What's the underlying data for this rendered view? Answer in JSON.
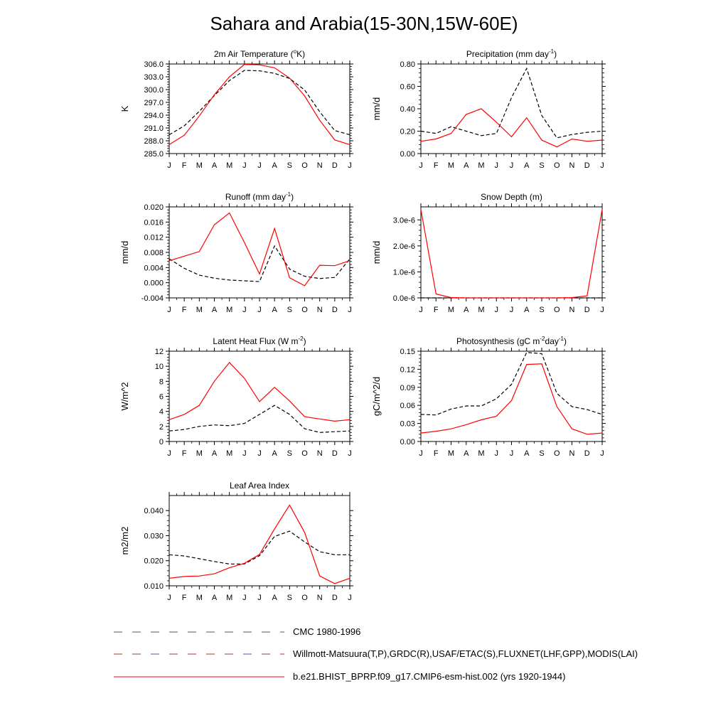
{
  "title": "Sahara and Arabia(15-30N,15W-60E)",
  "months": [
    "J",
    "F",
    "M",
    "A",
    "M",
    "J",
    "J",
    "A",
    "S",
    "O",
    "N",
    "D",
    "J"
  ],
  "colors": {
    "model": "#ff0000",
    "obs": "#000000"
  },
  "legend": [
    {
      "label": "CMC 1980-1996",
      "style": "dashed-gray"
    },
    {
      "label": "Willmott-Matsuura(T,P),GRDC(R),USAF/ETAC(S),FLUXNET(LHF,GPP),MODIS(LAI)",
      "style": "dashed-multicolor"
    },
    {
      "label": "b.e21.BHIST_BPRP.f09_g17.CMIP6-esm-hist.002 (yrs 1920-1944)",
      "style": "solid-red"
    }
  ],
  "chart_data": [
    {
      "type": "line",
      "title": "2m Air Temperature (°K)",
      "ylabel": "K",
      "ylim": [
        285.0,
        306.0
      ],
      "yticks": [
        "285.0",
        "288.0",
        "291.0",
        "294.0",
        "297.0",
        "300.0",
        "303.0",
        "306.0"
      ],
      "yticks_values": [
        285,
        288,
        291,
        294,
        297,
        300,
        303,
        306
      ],
      "x": [
        "J",
        "F",
        "M",
        "A",
        "M",
        "J",
        "J",
        "A",
        "S",
        "O",
        "N",
        "D",
        "J"
      ],
      "series": [
        {
          "role": "model",
          "values": [
            287.1,
            289.3,
            293.8,
            298.8,
            303.0,
            305.9,
            305.8,
            305.1,
            302.7,
            298.5,
            292.8,
            288.2,
            287.1
          ]
        },
        {
          "role": "obs",
          "values": [
            289.4,
            291.5,
            294.9,
            298.6,
            302.1,
            304.5,
            304.4,
            303.8,
            302.6,
            299.9,
            294.8,
            290.4,
            289.4
          ]
        }
      ]
    },
    {
      "type": "line",
      "title": "Precipitation (mm day-1)",
      "ylabel": "mm/d",
      "ylim": [
        0.0,
        0.8
      ],
      "yticks": [
        "0.00",
        "0.20",
        "0.40",
        "0.60",
        "0.80"
      ],
      "yticks_values": [
        0,
        0.2,
        0.4,
        0.6,
        0.8
      ],
      "x": [
        "J",
        "F",
        "M",
        "A",
        "M",
        "J",
        "J",
        "A",
        "S",
        "O",
        "N",
        "D",
        "J"
      ],
      "series": [
        {
          "role": "model",
          "values": [
            0.11,
            0.13,
            0.18,
            0.35,
            0.4,
            0.28,
            0.15,
            0.32,
            0.12,
            0.06,
            0.13,
            0.11,
            0.12
          ]
        },
        {
          "role": "obs",
          "values": [
            0.2,
            0.18,
            0.24,
            0.2,
            0.16,
            0.18,
            0.5,
            0.76,
            0.34,
            0.14,
            0.17,
            0.19,
            0.2
          ]
        }
      ]
    },
    {
      "type": "line",
      "title": "Runoff (mm day-1)",
      "ylabel": "mm/d",
      "ylim": [
        -0.004,
        0.02
      ],
      "yticks": [
        "-0.004",
        "0.000",
        "0.004",
        "0.008",
        "0.012",
        "0.016",
        "0.020"
      ],
      "yticks_values": [
        -0.004,
        0,
        0.004,
        0.008,
        0.012,
        0.016,
        0.02
      ],
      "x": [
        "J",
        "F",
        "M",
        "A",
        "M",
        "J",
        "J",
        "A",
        "S",
        "O",
        "N",
        "D",
        "J"
      ],
      "series": [
        {
          "role": "model",
          "values": [
            0.0058,
            0.007,
            0.0082,
            0.0153,
            0.0184,
            0.0106,
            0.0023,
            0.0143,
            0.0013,
            -0.0008,
            0.0046,
            0.0045,
            0.0058
          ]
        },
        {
          "role": "obs",
          "values": [
            0.0063,
            0.0038,
            0.002,
            0.0012,
            0.0007,
            0.0005,
            0.0003,
            0.0097,
            0.0036,
            0.0017,
            0.0011,
            0.0014,
            0.0063
          ]
        }
      ]
    },
    {
      "type": "line",
      "title": "Snow Depth (m)",
      "ylabel": "mm/d",
      "ylim": [
        0.0,
        3.5e-06
      ],
      "yticks": [
        "0.0e-6",
        "1.0e-6",
        "2.0e-6",
        "3.0e-6"
      ],
      "yticks_values": [
        0,
        1e-06,
        2e-06,
        3e-06
      ],
      "x": [
        "J",
        "F",
        "M",
        "A",
        "M",
        "J",
        "J",
        "A",
        "S",
        "O",
        "N",
        "D",
        "J"
      ],
      "series": [
        {
          "role": "model",
          "values": [
            3.4e-06,
            1.5e-07,
            1e-08,
            0,
            0,
            0,
            0,
            0,
            0,
            0,
            1e-08,
            8e-08,
            3.4e-06
          ]
        },
        {
          "role": "obs",
          "values": [
            0,
            0,
            0,
            0,
            0,
            0,
            0,
            0,
            0,
            0,
            0,
            0,
            0
          ]
        }
      ]
    },
    {
      "type": "line",
      "title": "Latent Heat Flux (W m-2)",
      "ylabel": "W/m^2",
      "ylim": [
        0,
        12
      ],
      "yticks": [
        "0",
        "2",
        "4",
        "6",
        "8",
        "10",
        "12"
      ],
      "yticks_values": [
        0,
        2,
        4,
        6,
        8,
        10,
        12
      ],
      "x": [
        "J",
        "F",
        "M",
        "A",
        "M",
        "J",
        "J",
        "A",
        "S",
        "O",
        "N",
        "D",
        "J"
      ],
      "series": [
        {
          "role": "model",
          "values": [
            2.9,
            3.6,
            4.8,
            8.0,
            10.5,
            8.4,
            5.3,
            7.2,
            5.4,
            3.3,
            3.0,
            2.7,
            2.9
          ]
        },
        {
          "role": "obs",
          "values": [
            1.4,
            1.6,
            2.0,
            2.2,
            2.1,
            2.4,
            3.6,
            4.8,
            3.6,
            1.7,
            1.2,
            1.3,
            1.4
          ]
        }
      ]
    },
    {
      "type": "line",
      "title": "Photosynthesis (gC m-2day-1)",
      "ylabel": "gC/m^2/d",
      "ylim": [
        0.0,
        0.15
      ],
      "yticks": [
        "0.00",
        "0.03",
        "0.06",
        "0.09",
        "0.12",
        "0.15"
      ],
      "yticks_values": [
        0,
        0.03,
        0.06,
        0.09,
        0.12,
        0.15
      ],
      "x": [
        "J",
        "F",
        "M",
        "A",
        "M",
        "J",
        "J",
        "A",
        "S",
        "O",
        "N",
        "D",
        "J"
      ],
      "series": [
        {
          "role": "model",
          "values": [
            0.014,
            0.017,
            0.021,
            0.028,
            0.036,
            0.042,
            0.068,
            0.128,
            0.129,
            0.058,
            0.021,
            0.012,
            0.014
          ]
        },
        {
          "role": "obs",
          "values": [
            0.045,
            0.044,
            0.054,
            0.059,
            0.059,
            0.071,
            0.095,
            0.148,
            0.146,
            0.08,
            0.058,
            0.053,
            0.045
          ]
        }
      ]
    },
    {
      "type": "line",
      "title": "Leaf Area Index",
      "ylabel": "m2/m2",
      "ylim": [
        0.01,
        0.046
      ],
      "yticks": [
        "0.010",
        "0.020",
        "0.030",
        "0.040"
      ],
      "yticks_values": [
        0.01,
        0.02,
        0.03,
        0.04
      ],
      "x": [
        "J",
        "F",
        "M",
        "A",
        "M",
        "J",
        "J",
        "A",
        "S",
        "O",
        "N",
        "D",
        "J"
      ],
      "series": [
        {
          "role": "model",
          "values": [
            0.013,
            0.0137,
            0.0139,
            0.0148,
            0.0172,
            0.019,
            0.0225,
            0.0327,
            0.0422,
            0.0313,
            0.0139,
            0.0109,
            0.013
          ]
        },
        {
          "role": "obs",
          "values": [
            0.0224,
            0.0219,
            0.0208,
            0.0197,
            0.0187,
            0.0187,
            0.022,
            0.0297,
            0.0318,
            0.0275,
            0.0236,
            0.0224,
            0.0224
          ]
        }
      ]
    }
  ]
}
